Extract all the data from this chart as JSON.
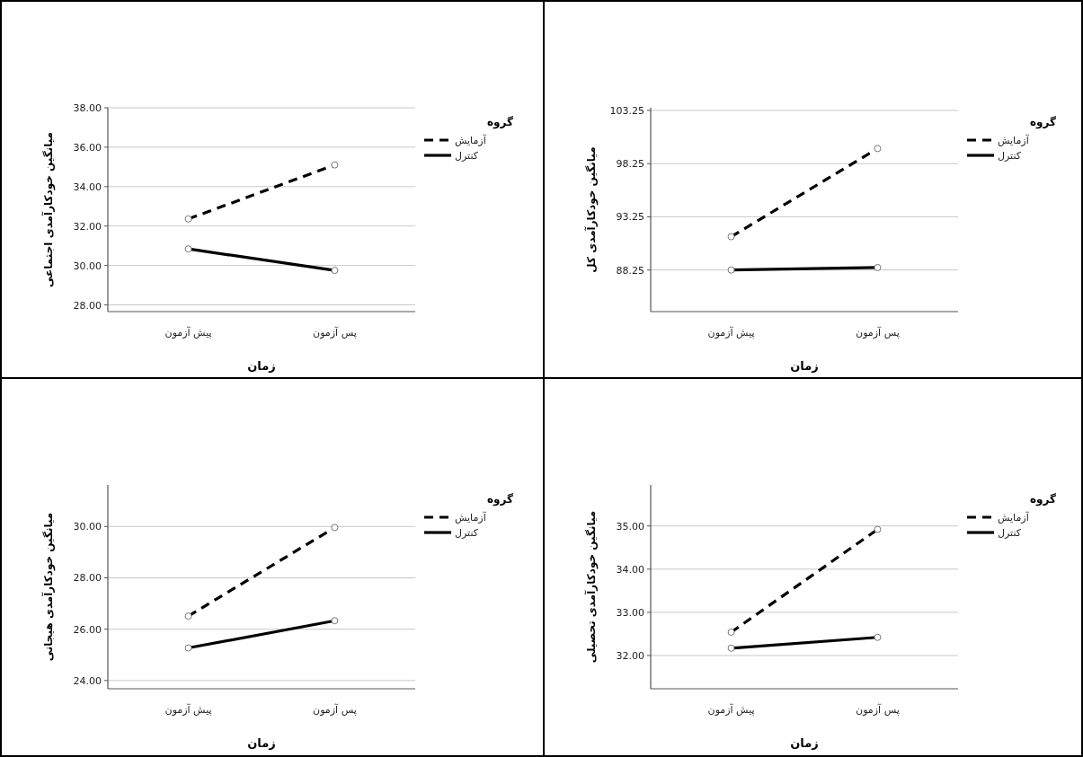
{
  "chart_data": [
    {
      "type": "line",
      "xlabel": "زمان",
      "ylabel": "میانگین خودکارآمدی اجتماعی",
      "legend_title": "گروه",
      "categories": [
        "پیش آزمون",
        "پس آزمون"
      ],
      "series": [
        {
          "name": "آزمایش",
          "color": "#000000",
          "line_style": "dashed",
          "values": [
            32.36,
            35.1
          ]
        },
        {
          "name": "کنترل",
          "color": "#000000",
          "line_style": "solid",
          "values": [
            30.84,
            29.75
          ]
        }
      ],
      "ylim": [
        27.66,
        38.0
      ],
      "yticks": [
        {
          "value": 28,
          "label": "28.00"
        },
        {
          "value": 30,
          "label": "30.00"
        },
        {
          "value": 32,
          "label": "32.00"
        },
        {
          "value": 34,
          "label": "34.00"
        },
        {
          "value": 36,
          "label": "36.00"
        },
        {
          "value": 38,
          "label": "38.00"
        }
      ],
      "grid": "y",
      "legend": "right",
      "marker": "circle"
    },
    {
      "type": "line",
      "xlabel": "زمان",
      "ylabel": "میانگین خودکارآمدی کل",
      "legend_title": "گروه",
      "categories": [
        "پیش آزمون",
        "پس آزمون"
      ],
      "series": [
        {
          "name": "آزمایش",
          "color": "#000000",
          "line_style": "dashed",
          "values": [
            91.38,
            99.67
          ]
        },
        {
          "name": "کنترل",
          "color": "#000000",
          "line_style": "solid",
          "values": [
            88.25,
            88.48
          ]
        }
      ],
      "ylim": [
        84.34,
        103.5
      ],
      "yticks": [
        88.25,
        93.25,
        98.25,
        103.25
      ],
      "grid": "y",
      "legend": "right",
      "marker": "circle"
    },
    {
      "type": "line",
      "xlabel": "زمان",
      "ylabel": "میانگین خودکارآمدی هیجانی",
      "legend_title": "گروه",
      "categories": [
        "پیش آزمون",
        "پس آزمون"
      ],
      "series": [
        {
          "name": "آزمایش",
          "color": "#000000",
          "line_style": "dashed",
          "values": [
            26.51,
            29.96
          ]
        },
        {
          "name": "کنترل",
          "color": "#000000",
          "line_style": "solid",
          "values": [
            25.27,
            26.33
          ]
        }
      ],
      "ylim": [
        23.68,
        31.62
      ],
      "yticks": [
        {
          "value": 24,
          "label": "24.00"
        },
        {
          "value": 26,
          "label": "26.00"
        },
        {
          "value": 28,
          "label": "28.00"
        },
        {
          "value": 30,
          "label": "30.00"
        }
      ],
      "grid": "y",
      "legend": "right",
      "marker": "circle"
    },
    {
      "type": "line",
      "xlabel": "زمان",
      "ylabel": "میانگین خودکارآمدی تحصیلی",
      "legend_title": "گروه",
      "categories": [
        "پیش آزمون",
        "پس آزمون"
      ],
      "series": [
        {
          "name": "آزمایش",
          "color": "#000000",
          "line_style": "dashed",
          "values": [
            32.54,
            34.92
          ]
        },
        {
          "name": "کنترل",
          "color": "#000000",
          "line_style": "solid",
          "values": [
            32.17,
            32.42
          ]
        }
      ],
      "ylim": [
        31.23,
        35.95
      ],
      "yticks": [
        {
          "value": 32,
          "label": "32.00"
        },
        {
          "value": 33,
          "label": "33.00"
        },
        {
          "value": 34,
          "label": "34.00"
        },
        {
          "value": 35,
          "label": "35.00"
        }
      ],
      "grid": "y",
      "legend": "right",
      "marker": "circle"
    }
  ]
}
